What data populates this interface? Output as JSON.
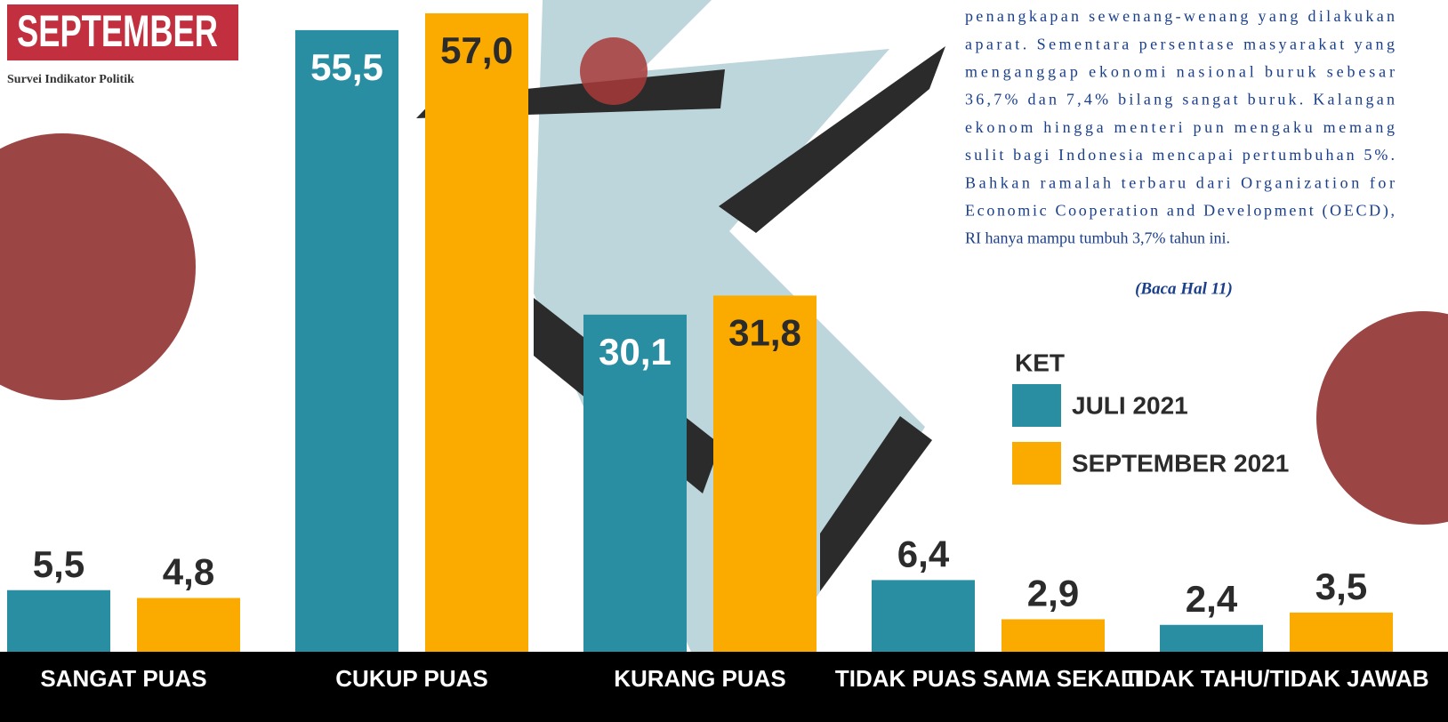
{
  "chart_data": {
    "type": "bar",
    "categories": [
      "SANGAT PUAS",
      "CUKUP PUAS",
      "KURANG PUAS",
      "TIDAK PUAS SAMA SEKALI",
      "TIDAK TAHU/TIDAK JAWAB"
    ],
    "series": [
      {
        "name": "JULI 2021",
        "color": "#2a8ea3",
        "values": [
          5.5,
          55.5,
          30.1,
          6.4,
          2.4
        ],
        "value_labels": [
          "5,5",
          "55,5",
          "30,1",
          "6,4",
          "2,4"
        ]
      },
      {
        "name": "SEPTEMBER 2021",
        "color": "#fbab00",
        "values": [
          4.8,
          57.0,
          31.8,
          2.9,
          3.5
        ],
        "value_labels": [
          "4,8",
          "57,0",
          "31,8",
          "2,9",
          "3,5"
        ]
      }
    ],
    "ylim": [
      0,
      57
    ],
    "legend_title": "KET"
  },
  "header": {
    "title": "SEPTEMBER",
    "source": "Survei Indikator Politik"
  },
  "article": {
    "lines": [
      "penangkapan sewenang-wenang yang dilakukan",
      "aparat.  Sementara persentase masyarakat yang",
      "menganggap ekonomi nasional buruk sebesar",
      "36,7% dan 7,4% bilang sangat buruk. Kalangan",
      "ekonom hingga menteri pun mengaku memang",
      "sulit bagi Indonesia mencapai pertumbuhan 5%.",
      "Bahkan ramalah terbaru dari Organization for",
      "Economic Cooperation and Development (OECD),",
      "RI hanya mampu tumbuh 3,7% tahun ini."
    ],
    "reference": "(Baca Hal 11)"
  }
}
